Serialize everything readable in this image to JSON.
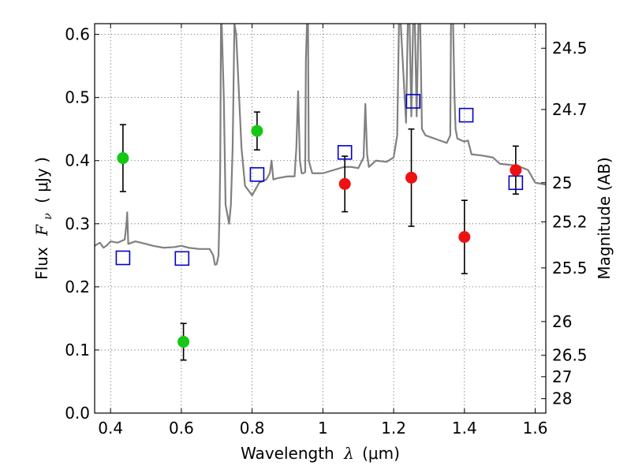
{
  "chart_data": {
    "type": "scatter",
    "xlabel_prefix": "Wavelength",
    "xlabel_symbol": "λ",
    "xlabel_unit": "(μm)",
    "ylabel_prefix": "Flux",
    "ylabel_symbol": "F",
    "ylabel_subscript": "ν",
    "ylabel_unit": "( μJy )",
    "y2label": "Magnitude (AB)",
    "xlim": [
      0.355,
      1.63
    ],
    "ylim": [
      0.0,
      0.617
    ],
    "grid": true,
    "x_ticks": [
      0.4,
      0.6,
      0.8,
      1.0,
      1.2,
      1.4,
      1.6
    ],
    "x_tick_labels": [
      "0.4",
      "0.6",
      "0.8",
      "1",
      "1.2",
      "1.4",
      "1.6"
    ],
    "y_ticks": [
      0.0,
      0.1,
      0.2,
      0.3,
      0.4,
      0.5,
      0.6
    ],
    "y_tick_labels": [
      "0.0",
      "0.1",
      "0.2",
      "0.3",
      "0.4",
      "0.5",
      "0.6"
    ],
    "y2_ticks": [
      {
        "label": "24.5",
        "flux": 0.578
      },
      {
        "label": "24.7",
        "flux": 0.481
      },
      {
        "label": "25",
        "flux": 0.365
      },
      {
        "label": "25.2",
        "flux": 0.303
      },
      {
        "label": "25.5",
        "flux": 0.23
      },
      {
        "label": "26",
        "flux": 0.145
      },
      {
        "label": "26.5",
        "flux": 0.0915
      },
      {
        "label": "27",
        "flux": 0.0577
      },
      {
        "label": "28",
        "flux": 0.0229
      }
    ],
    "colors": {
      "green": "#14c814",
      "red": "#ee1111",
      "blue_open": "#0000cc",
      "model": "#808080",
      "errorbar": "#000000",
      "grid": "#555555"
    },
    "series": [
      {
        "name": "photometry-green",
        "marker": "circle",
        "points": [
          {
            "x": 0.435,
            "y": 0.404,
            "yerr": [
              0.053,
              0.053
            ]
          },
          {
            "x": 0.606,
            "y": 0.113,
            "yerr": [
              0.029,
              0.029
            ]
          },
          {
            "x": 0.814,
            "y": 0.447,
            "yerr": [
              0.03,
              0.03
            ]
          }
        ]
      },
      {
        "name": "photometry-red",
        "marker": "circle",
        "points": [
          {
            "x": 1.062,
            "y": 0.363,
            "yerr": [
              0.044,
              0.044
            ]
          },
          {
            "x": 1.25,
            "y": 0.373,
            "yerr": [
              0.077,
              0.077
            ]
          },
          {
            "x": 1.4,
            "y": 0.279,
            "yerr": [
              0.058,
              0.058
            ]
          },
          {
            "x": 1.545,
            "y": 0.385,
            "yerr": [
              0.038,
              0.038
            ]
          }
        ]
      },
      {
        "name": "model-photometry",
        "marker": "open-square",
        "points": [
          {
            "x": 0.435,
            "y": 0.246
          },
          {
            "x": 0.602,
            "y": 0.245
          },
          {
            "x": 0.814,
            "y": 0.378
          },
          {
            "x": 1.062,
            "y": 0.413
          },
          {
            "x": 1.255,
            "y": 0.494
          },
          {
            "x": 1.405,
            "y": 0.472
          },
          {
            "x": 1.545,
            "y": 0.365
          }
        ]
      },
      {
        "name": "model-spectrum",
        "marker": "line",
        "x": [
          0.355,
          0.37,
          0.38,
          0.39,
          0.4,
          0.42,
          0.44,
          0.445,
          0.447,
          0.45,
          0.47,
          0.5,
          0.52,
          0.55,
          0.58,
          0.6,
          0.62,
          0.65,
          0.68,
          0.69,
          0.695,
          0.7,
          0.705,
          0.708,
          0.71,
          0.712,
          0.714,
          0.72,
          0.725,
          0.735,
          0.74,
          0.745,
          0.75,
          0.755,
          0.76,
          0.77,
          0.78,
          0.8,
          0.82,
          0.84,
          0.85,
          0.855,
          0.86,
          0.87,
          0.9,
          0.92,
          0.925,
          0.93,
          0.935,
          0.94,
          0.945,
          0.95,
          0.952,
          0.955,
          0.958,
          0.96,
          0.97,
          1.0,
          1.03,
          1.06,
          1.08,
          1.1,
          1.115,
          1.12,
          1.125,
          1.13,
          1.15,
          1.18,
          1.2,
          1.21,
          1.215,
          1.22,
          1.235,
          1.24,
          1.245,
          1.25,
          1.255,
          1.26,
          1.265,
          1.27,
          1.275,
          1.28,
          1.29,
          1.3,
          1.33,
          1.35,
          1.36,
          1.362,
          1.365,
          1.368,
          1.372,
          1.375,
          1.38,
          1.4,
          1.41,
          1.42,
          1.45,
          1.48,
          1.5,
          1.55,
          1.58,
          1.6,
          1.63
        ],
        "y": [
          0.265,
          0.27,
          0.262,
          0.266,
          0.272,
          0.27,
          0.275,
          0.3,
          0.318,
          0.268,
          0.272,
          0.268,
          0.265,
          0.262,
          0.263,
          0.265,
          0.262,
          0.26,
          0.26,
          0.25,
          0.235,
          0.236,
          0.25,
          0.32,
          0.4,
          0.617,
          0.617,
          0.5,
          0.33,
          0.3,
          0.33,
          0.42,
          0.617,
          0.6,
          0.54,
          0.42,
          0.36,
          0.345,
          0.365,
          0.37,
          0.38,
          0.4,
          0.37,
          0.372,
          0.375,
          0.375,
          0.42,
          0.51,
          0.4,
          0.38,
          0.38,
          0.382,
          0.56,
          0.617,
          0.617,
          0.4,
          0.38,
          0.38,
          0.385,
          0.39,
          0.39,
          0.388,
          0.405,
          0.49,
          0.41,
          0.39,
          0.4,
          0.398,
          0.405,
          0.44,
          0.617,
          0.617,
          0.46,
          0.617,
          0.617,
          0.47,
          0.617,
          0.617,
          0.47,
          0.617,
          0.617,
          0.45,
          0.44,
          0.438,
          0.432,
          0.428,
          0.44,
          0.617,
          0.617,
          0.617,
          0.5,
          0.45,
          0.435,
          0.43,
          0.432,
          0.41,
          0.408,
          0.405,
          0.395,
          0.392,
          0.385,
          0.365,
          0.362
        ]
      }
    ]
  }
}
